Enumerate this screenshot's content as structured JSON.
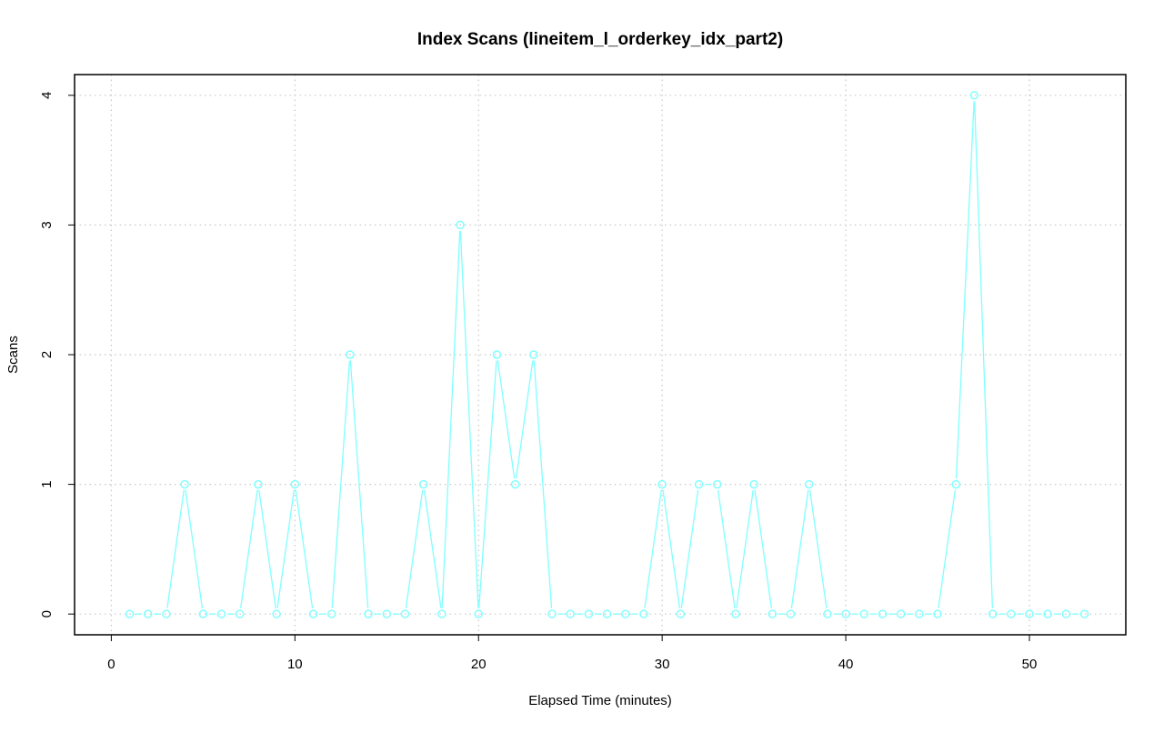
{
  "chart_data": {
    "type": "line",
    "title": "Index Scans (lineitem_l_orderkey_idx_part2)",
    "xlabel": "Elapsed Time (minutes)",
    "ylabel": "Scans",
    "xlim": [
      -2,
      55.25
    ],
    "ylim": [
      -0.16,
      4.16
    ],
    "x_ticks": [
      0,
      10,
      20,
      30,
      40,
      50
    ],
    "y_ticks": [
      0,
      1,
      2,
      3,
      4
    ],
    "grid": true,
    "legend": "none",
    "series": [
      {
        "color": "#80ffff",
        "marker": "open-circle",
        "x": [
          1,
          2,
          3,
          4,
          5,
          6,
          7,
          8,
          9,
          10,
          11,
          12,
          13,
          14,
          15,
          16,
          17,
          18,
          19,
          20,
          21,
          22,
          23,
          24,
          25,
          26,
          27,
          28,
          29,
          30,
          31,
          32,
          33,
          34,
          35,
          36,
          37,
          38,
          39,
          40,
          41,
          42,
          43,
          44,
          45,
          46,
          47,
          48,
          49,
          50,
          51,
          52,
          53
        ],
        "values": [
          0,
          0,
          0,
          1,
          0,
          0,
          0,
          1,
          0,
          1,
          0,
          0,
          2,
          0,
          0,
          0,
          1,
          0,
          3,
          0,
          2,
          1,
          2,
          0,
          0,
          0,
          0,
          0,
          0,
          1,
          0,
          1,
          1,
          0,
          1,
          0,
          0,
          1,
          0,
          0,
          0,
          0,
          0,
          0,
          0,
          1,
          4,
          0,
          0,
          0,
          0,
          0,
          0
        ]
      }
    ]
  }
}
